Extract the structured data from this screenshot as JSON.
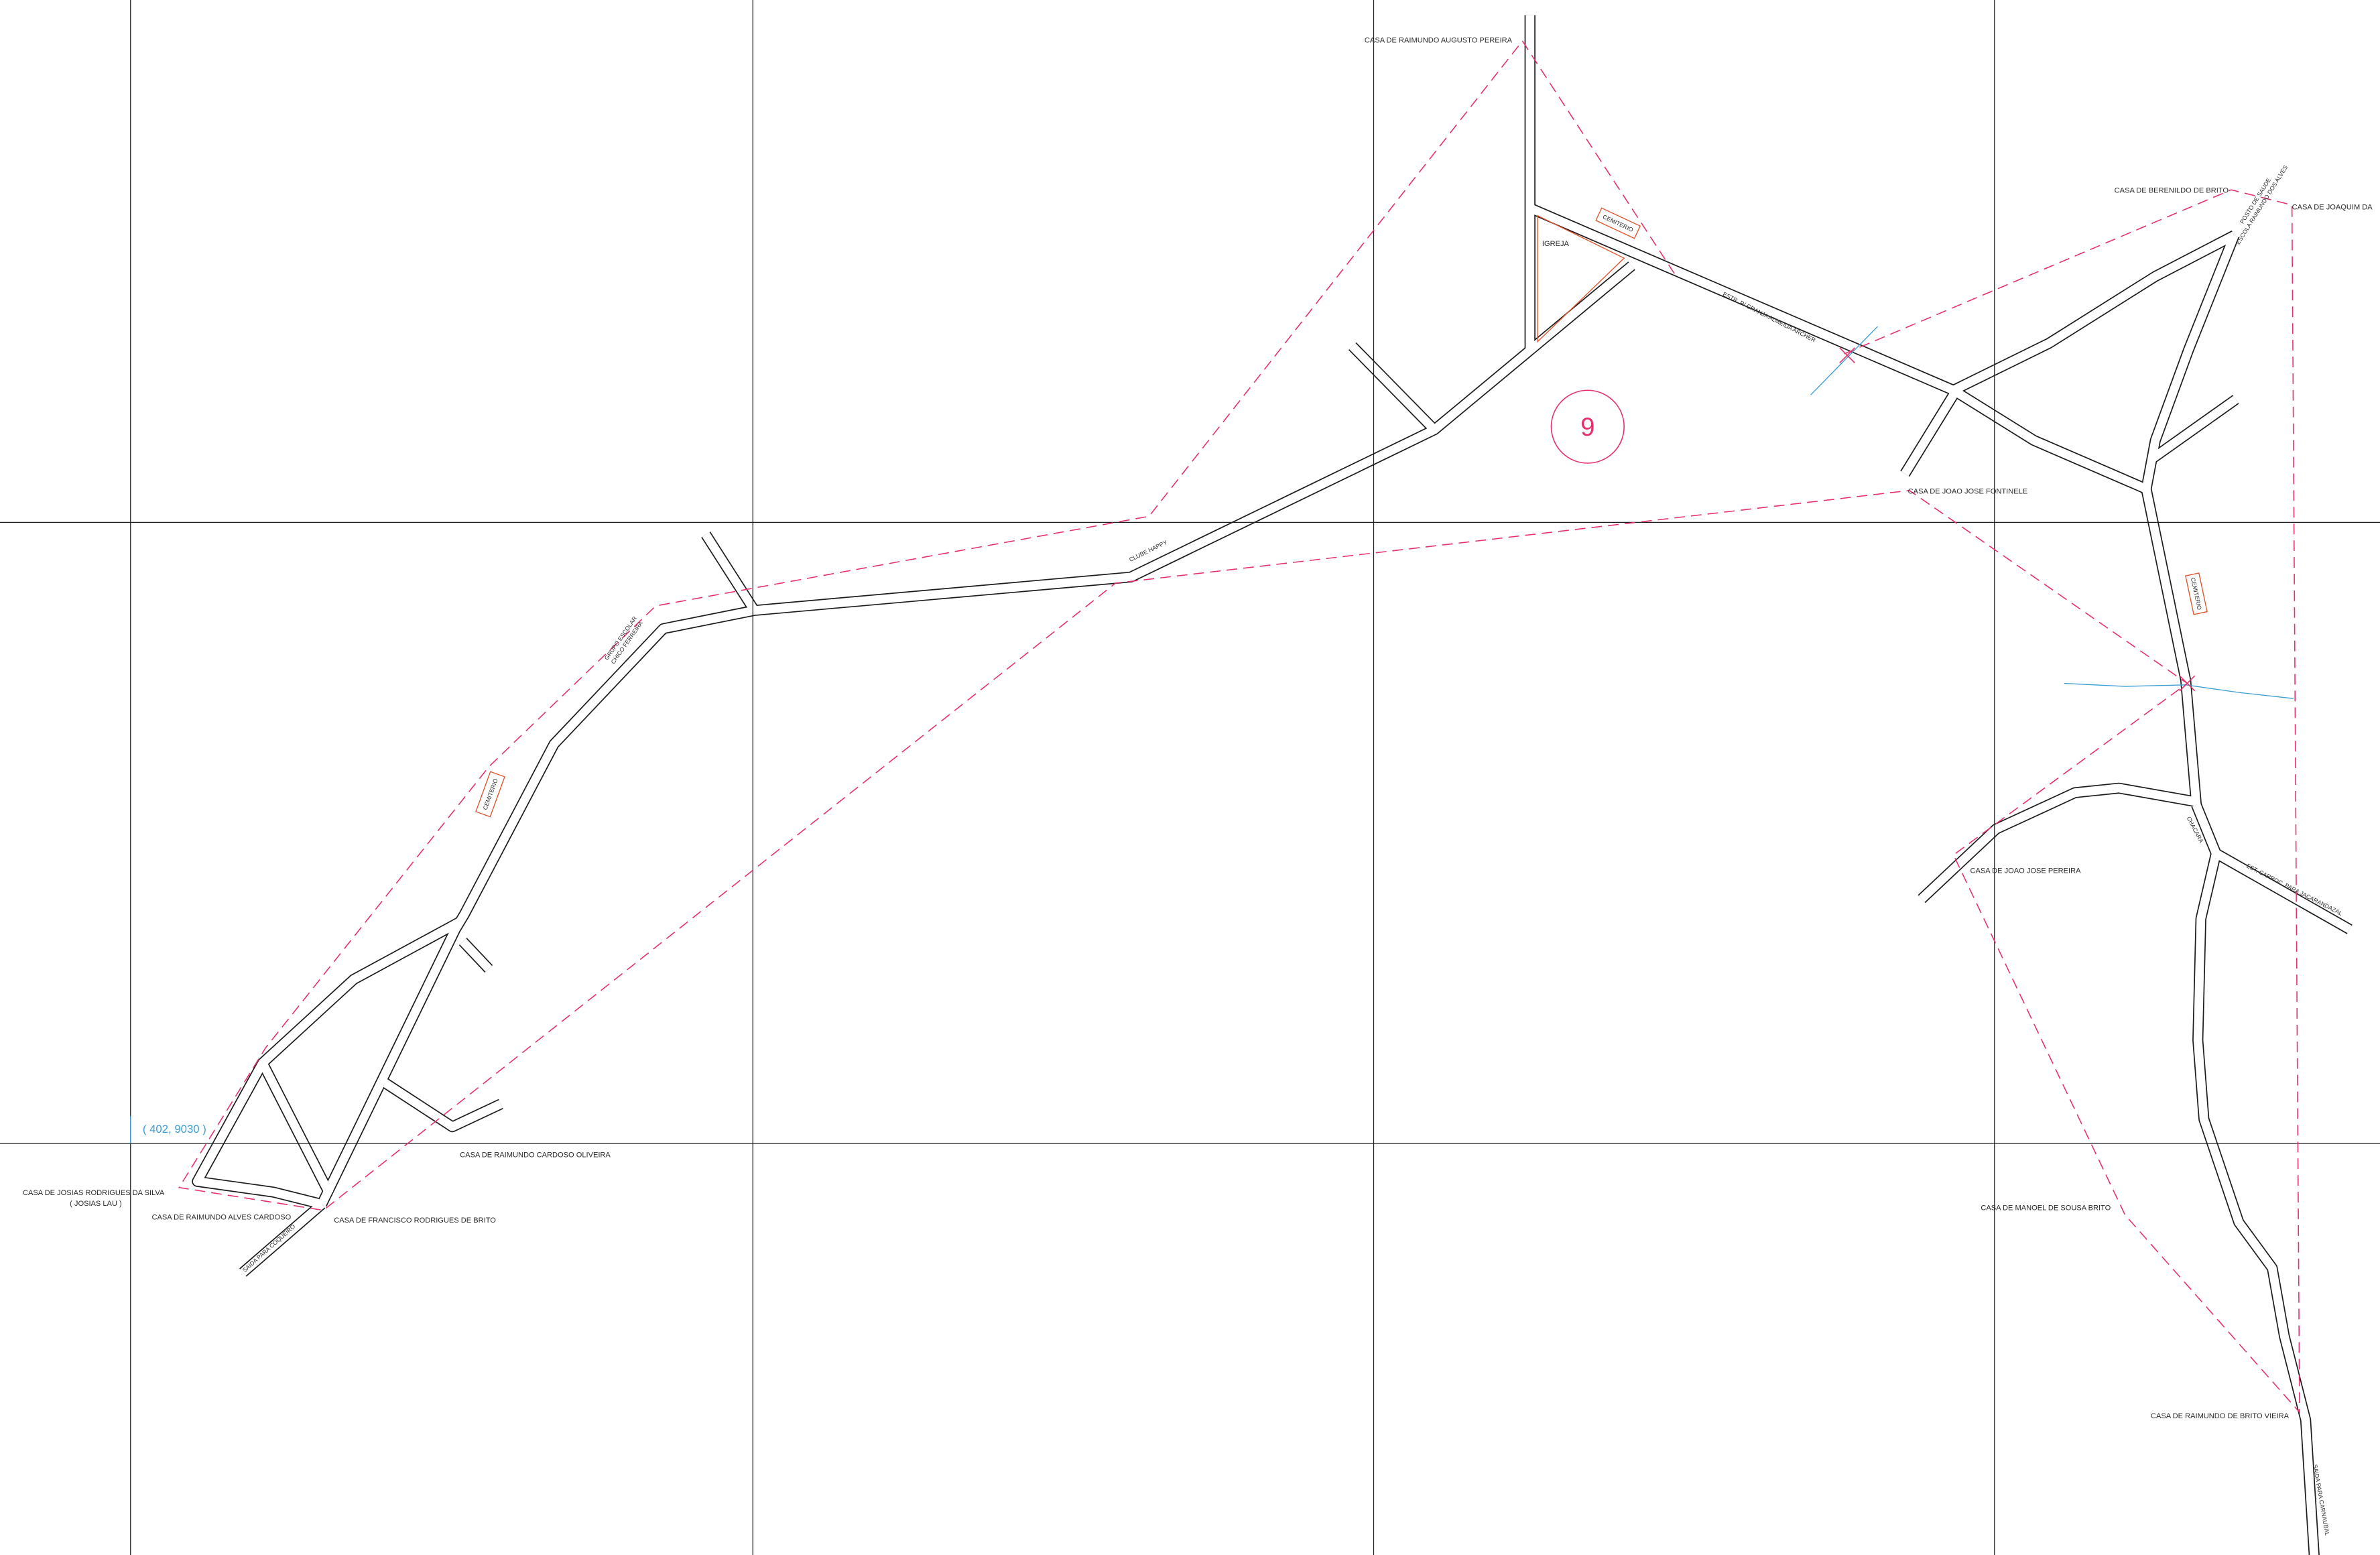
{
  "map": {
    "sector_number": "9",
    "coordinate_label": "( 402, 9030 )",
    "landmarks": {
      "igreja": "IGREJA",
      "cemiterio_norte": "CEMITERIO",
      "cemiterio_leste": "CEMITERIO",
      "cemiterio_oeste": "CEMITERIO",
      "clube": "CLUBE HAPPY",
      "grupo_escolar_line1": "GRUPO ESCOLAR",
      "grupo_escolar_line2": "CHICO FERREIRA",
      "posto_line1": "POSTO DE SAUDE",
      "posto_line2": "ESCOLA RAIMUNDO DOS ALVES",
      "chacara": "CHACARA"
    },
    "roads": {
      "estrada_norte": "ESTR. P/ GRANJA ALMEIDA ARCHER",
      "estrada_carrocavel": "EST. CARROC. PARA JACARANDAZAL",
      "saida_oeste": "SAIDA PARA COQUEIRO",
      "saida_sul": "SAIDA PARA CARNAUBAL"
    },
    "houses": {
      "raimundo_augusto_pereira": "CASA DE RAIMUNDO AUGUSTO PEREIRA",
      "berenildo_de_brito": "CASA DE BERENILDO DE BRITO",
      "joaquim": "CASA DE JOAQUIM DA",
      "joao_jose_fontinele": "CASA DE JOAO JOSE FONTINELE",
      "raimundo_cardoso_oliveira": "CASA DE RAIMUNDO CARDOSO OLIVEIRA",
      "josias_rodrigues_da_silva": "CASA DE JOSIAS RODRIGUES DA SILVA",
      "josias_apelido": "( JOSIAS LAU )",
      "raimundo_alves_cardoso": "CASA DE RAIMUNDO ALVES CARDOSO",
      "francisco_rodrigues_de_brito": "CASA DE FRANCISCO RODRIGUES DE BRITO",
      "joao_jose_pereira": "CASA DE JOAO JOSE PEREIRA",
      "manoel_de_sousa_brito": "CASA DE MANOEL DE SOUSA BRITO",
      "raimundo_de_brito_vieira": "CASA DE RAIMUNDO DE BRITO VIEIRA"
    }
  },
  "colors": {
    "road": "#1c1c1c",
    "boundary": "#e6306c",
    "landmark": "#e05530",
    "water": "#3b9fd6",
    "grid": "#1c1c1c",
    "text": "#2a2a2a"
  }
}
